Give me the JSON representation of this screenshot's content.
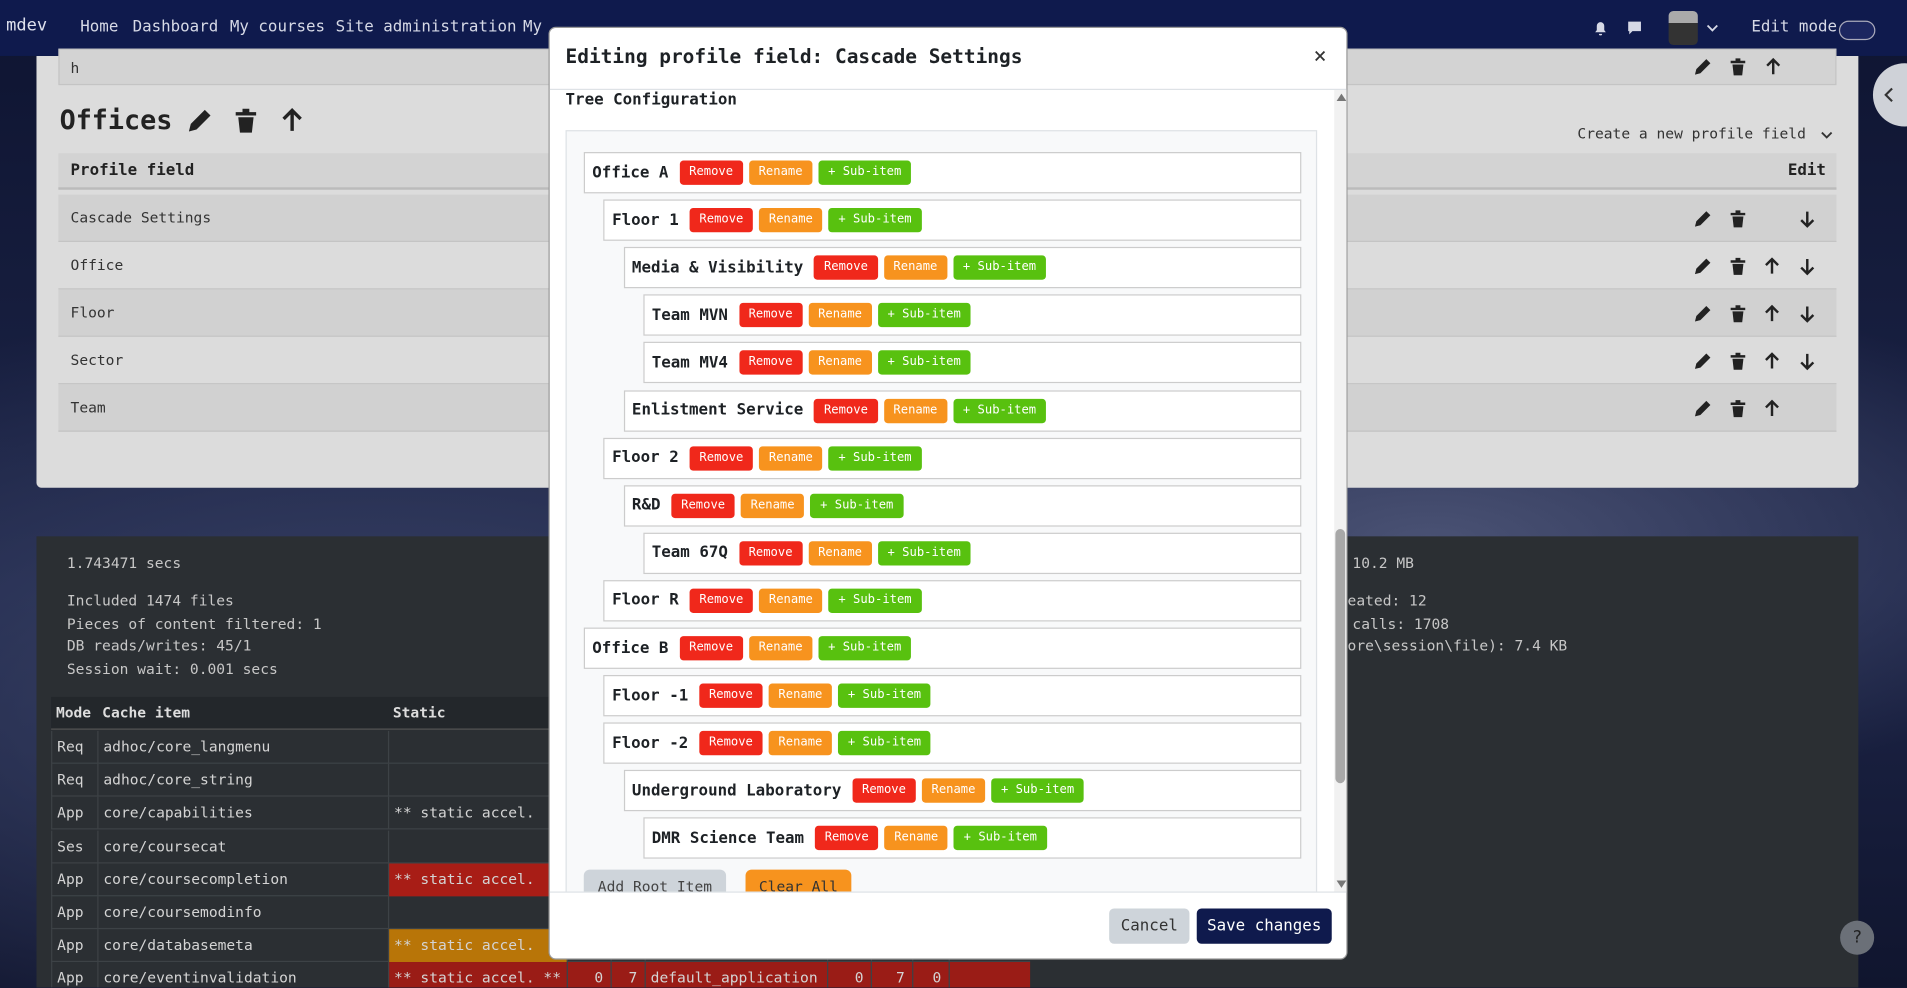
{
  "navbar": {
    "brand": "mdev",
    "links": [
      "Home",
      "Dashboard",
      "My courses",
      "Site administration",
      "My"
    ],
    "edit_mode": "Edit mode"
  },
  "page": {
    "top_row": "h",
    "section": "Offices",
    "create_link": "Create a new profile field",
    "table": {
      "headers": [
        "Profile field",
        "Edit"
      ],
      "rows": [
        "Cascade Settings",
        "Office",
        "Floor",
        "Sector",
        "Team"
      ]
    }
  },
  "debug": {
    "time": "1.743471 secs",
    "memory": "10.2 MB",
    "left_lines": [
      "Included 1474 files",
      "Pieces of content filtered: 1",
      "DB reads/writes: 45/1",
      "Session wait: 0.001 secs"
    ],
    "right_lines": [
      "eated: 12",
      "calls: 1708",
      "ore\\session\\file): 7.4 KB"
    ],
    "cache_table": {
      "headers": [
        "Mode",
        "Cache item",
        "Static"
      ],
      "rows": [
        [
          "Req",
          "adhoc/core_langmenu"
        ],
        [
          "Req",
          "adhoc/core_string"
        ],
        [
          "App",
          "core/capabilities",
          "** static accel."
        ],
        [
          "Ses",
          "core/coursecat"
        ],
        [
          "App",
          "core/coursecompletion",
          "** static accel."
        ],
        [
          "App",
          "core/coursemodinfo"
        ],
        [
          "App",
          "core/databasemeta",
          "** static accel."
        ],
        [
          "App",
          "core/eventinvalidation",
          "** static accel. **",
          "0",
          "7",
          "default_application",
          "0",
          "7",
          "0"
        ]
      ]
    }
  },
  "modal": {
    "title": "Editing profile field: Cascade Settings",
    "close": "×",
    "section": "Tree Configuration",
    "item_buttons": {
      "remove": "Remove",
      "rename": "Rename",
      "add_sub": "+ Sub-item"
    },
    "tree": [
      {
        "label": "Office A",
        "children": [
          {
            "label": "Floor 1",
            "children": [
              {
                "label": "Media & Visibility",
                "children": [
                  {
                    "label": "Team MVN"
                  },
                  {
                    "label": "Team MV4"
                  }
                ]
              },
              {
                "label": "Enlistment Service"
              }
            ]
          },
          {
            "label": "Floor 2",
            "children": [
              {
                "label": "R&D",
                "children": [
                  {
                    "label": "Team 67Q"
                  }
                ]
              }
            ]
          },
          {
            "label": "Floor R"
          }
        ]
      },
      {
        "label": "Office B",
        "children": [
          {
            "label": "Floor -1"
          },
          {
            "label": "Floor -2",
            "children": [
              {
                "label": "Underground Laboratory",
                "children": [
                  {
                    "label": "DMR Science Team"
                  }
                ]
              }
            ]
          }
        ]
      }
    ],
    "actions": [
      "Add Root Item",
      "Clear All"
    ],
    "footer": {
      "cancel": "Cancel",
      "save": "Save changes"
    }
  },
  "help": "?"
}
